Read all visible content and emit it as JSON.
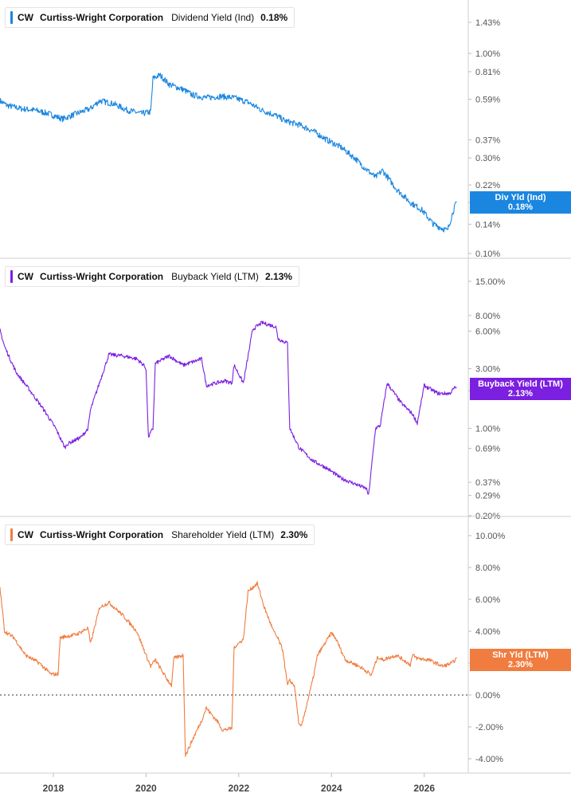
{
  "panels": [
    {
      "id": "div",
      "ticker": "CW",
      "company": "Curtiss-Wright Corporation",
      "metric": "Dividend Yield (Ind)",
      "value": "0.18%",
      "color": "#1a86e0",
      "tag_label": "Div Yld (Ind)",
      "tag_value": "0.18%",
      "scale": "log",
      "y_ticks": [
        "1.43%",
        "1.00%",
        "0.81%",
        "0.59%",
        "0.37%",
        "0.30%",
        "0.22%",
        "0.18%",
        "0.14%",
        "0.10%"
      ]
    },
    {
      "id": "buyback",
      "ticker": "CW",
      "company": "Curtiss-Wright Corporation",
      "metric": "Buyback Yield (LTM)",
      "value": "2.13%",
      "color": "#7b1fe0",
      "tag_label": "Buyback Yield (LTM)",
      "tag_value": "2.13%",
      "scale": "log",
      "y_ticks": [
        "15.00%",
        "8.00%",
        "6.00%",
        "3.00%",
        "2.00%",
        "1.00%",
        "0.69%",
        "0.37%",
        "0.29%",
        "0.20%"
      ]
    },
    {
      "id": "shareholder",
      "ticker": "CW",
      "company": "Curtiss-Wright Corporation",
      "metric": "Shareholder Yield (LTM)",
      "value": "2.30%",
      "color": "#f07c3f",
      "tag_label": "Shr Yld (LTM)",
      "tag_value": "2.30%",
      "scale": "linear",
      "y_ticks": [
        "10.00%",
        "8.00%",
        "6.00%",
        "4.00%",
        "2.00%",
        "0.00%",
        "-2.00%",
        "-4.00%"
      ]
    }
  ],
  "x_ticks": [
    "2018",
    "2020",
    "2022",
    "2024",
    "2026"
  ],
  "chart_data": [
    {
      "type": "line",
      "title": "CW Curtiss-Wright Corporation Dividend Yield (Ind)",
      "ylabel": "Dividend Yield (Ind)",
      "yscale": "log",
      "ylim": [
        0.1,
        1.6
      ],
      "series": [
        {
          "name": "Dividend Yield (Ind)",
          "x": [
            2016.85,
            2017.0,
            2017.3,
            2017.6,
            2017.9,
            2018.2,
            2018.5,
            2018.8,
            2019.0,
            2019.3,
            2019.6,
            2019.9,
            2020.1,
            2020.15,
            2020.3,
            2020.5,
            2020.8,
            2021.0,
            2021.3,
            2021.6,
            2021.9,
            2022.2,
            2022.5,
            2022.8,
            2023.0,
            2023.3,
            2023.6,
            2023.9,
            2024.2,
            2024.5,
            2024.7,
            2024.95,
            2025.1,
            2025.4,
            2025.7,
            2025.95,
            2026.2,
            2026.5,
            2026.65,
            2026.7
          ],
          "y": [
            0.58,
            0.55,
            0.53,
            0.52,
            0.5,
            0.47,
            0.5,
            0.53,
            0.58,
            0.56,
            0.52,
            0.5,
            0.51,
            0.75,
            0.78,
            0.7,
            0.66,
            0.62,
            0.6,
            0.61,
            0.6,
            0.57,
            0.52,
            0.49,
            0.46,
            0.44,
            0.41,
            0.37,
            0.34,
            0.3,
            0.27,
            0.24,
            0.26,
            0.21,
            0.18,
            0.165,
            0.14,
            0.13,
            0.17,
            0.18
          ]
        }
      ]
    },
    {
      "type": "line",
      "title": "CW Curtiss-Wright Corporation Buyback Yield (LTM)",
      "ylabel": "Buyback Yield (LTM)",
      "yscale": "log",
      "ylim": [
        0.2,
        16
      ],
      "series": [
        {
          "name": "Buyback Yield (LTM)",
          "x": [
            2016.85,
            2016.95,
            2017.2,
            2017.5,
            2017.8,
            2018.05,
            2018.25,
            2018.3,
            2018.6,
            2018.75,
            2018.8,
            2019.2,
            2019.5,
            2019.8,
            2019.95,
            2020.0,
            2020.05,
            2020.15,
            2020.2,
            2020.5,
            2020.8,
            2021.2,
            2021.3,
            2021.7,
            2021.85,
            2021.9,
            2022.1,
            2022.3,
            2022.5,
            2022.8,
            2022.85,
            2023.05,
            2023.1,
            2023.3,
            2023.6,
            2023.9,
            2024.2,
            2024.5,
            2024.75,
            2024.8,
            2024.95,
            2025.05,
            2025.2,
            2025.5,
            2025.75,
            2025.85,
            2026.0,
            2026.3,
            2026.55,
            2026.65,
            2026.7
          ],
          "y": [
            6.1,
            4.5,
            2.8,
            2.0,
            1.4,
            1.0,
            0.7,
            0.75,
            0.85,
            1.0,
            1.4,
            3.9,
            3.8,
            3.6,
            3.2,
            3.0,
            0.85,
            1.0,
            3.3,
            3.8,
            3.2,
            3.6,
            2.2,
            2.4,
            2.3,
            3.2,
            2.3,
            6.2,
            7.0,
            6.5,
            5.2,
            4.8,
            1.0,
            0.7,
            0.55,
            0.48,
            0.4,
            0.36,
            0.33,
            0.29,
            1.0,
            1.05,
            2.3,
            1.6,
            1.3,
            1.1,
            2.2,
            1.9,
            1.9,
            2.1,
            2.13
          ]
        }
      ]
    },
    {
      "type": "line",
      "title": "CW Curtiss-Wright Corporation Shareholder Yield (LTM)",
      "ylabel": "Shareholder Yield (LTM)",
      "yscale": "linear",
      "ylim": [
        -4.5,
        10.0
      ],
      "series": [
        {
          "name": "Shareholder Yield (LTM)",
          "x": [
            2016.85,
            2016.95,
            2017.15,
            2017.4,
            2017.7,
            2017.95,
            2018.1,
            2018.15,
            2018.5,
            2018.75,
            2018.8,
            2019.0,
            2019.2,
            2019.5,
            2019.8,
            2020.0,
            2020.1,
            2020.15,
            2020.2,
            2020.45,
            2020.55,
            2020.6,
            2020.8,
            2020.85,
            2021.05,
            2021.2,
            2021.3,
            2021.35,
            2021.55,
            2021.65,
            2021.85,
            2021.9,
            2022.1,
            2022.2,
            2022.4,
            2022.55,
            2022.75,
            2022.85,
            2022.95,
            2023.05,
            2023.1,
            2023.2,
            2023.3,
            2023.35,
            2023.6,
            2023.7,
            2024.0,
            2024.1,
            2024.3,
            2024.6,
            2024.8,
            2024.85,
            2025.0,
            2025.1,
            2025.4,
            2025.7,
            2025.75,
            2025.85,
            2026.1,
            2026.4,
            2026.6,
            2026.7
          ],
          "y": [
            6.7,
            4.0,
            3.6,
            2.5,
            2.0,
            1.3,
            1.3,
            3.6,
            3.8,
            4.2,
            3.2,
            5.5,
            5.8,
            5.0,
            4.0,
            2.5,
            1.8,
            2.0,
            2.2,
            1.0,
            0.6,
            2.3,
            2.5,
            -3.8,
            -2.5,
            -1.6,
            -0.8,
            -1.0,
            -1.7,
            -2.2,
            -2.1,
            3.0,
            3.5,
            6.5,
            7.0,
            5.5,
            4.0,
            3.5,
            2.8,
            0.6,
            0.9,
            0.6,
            -1.9,
            -2.0,
            1.0,
            2.5,
            3.9,
            3.5,
            2.2,
            1.8,
            1.4,
            1.2,
            2.4,
            2.2,
            2.5,
            1.9,
            2.5,
            2.3,
            2.2,
            1.8,
            2.0,
            2.3
          ]
        }
      ]
    }
  ]
}
